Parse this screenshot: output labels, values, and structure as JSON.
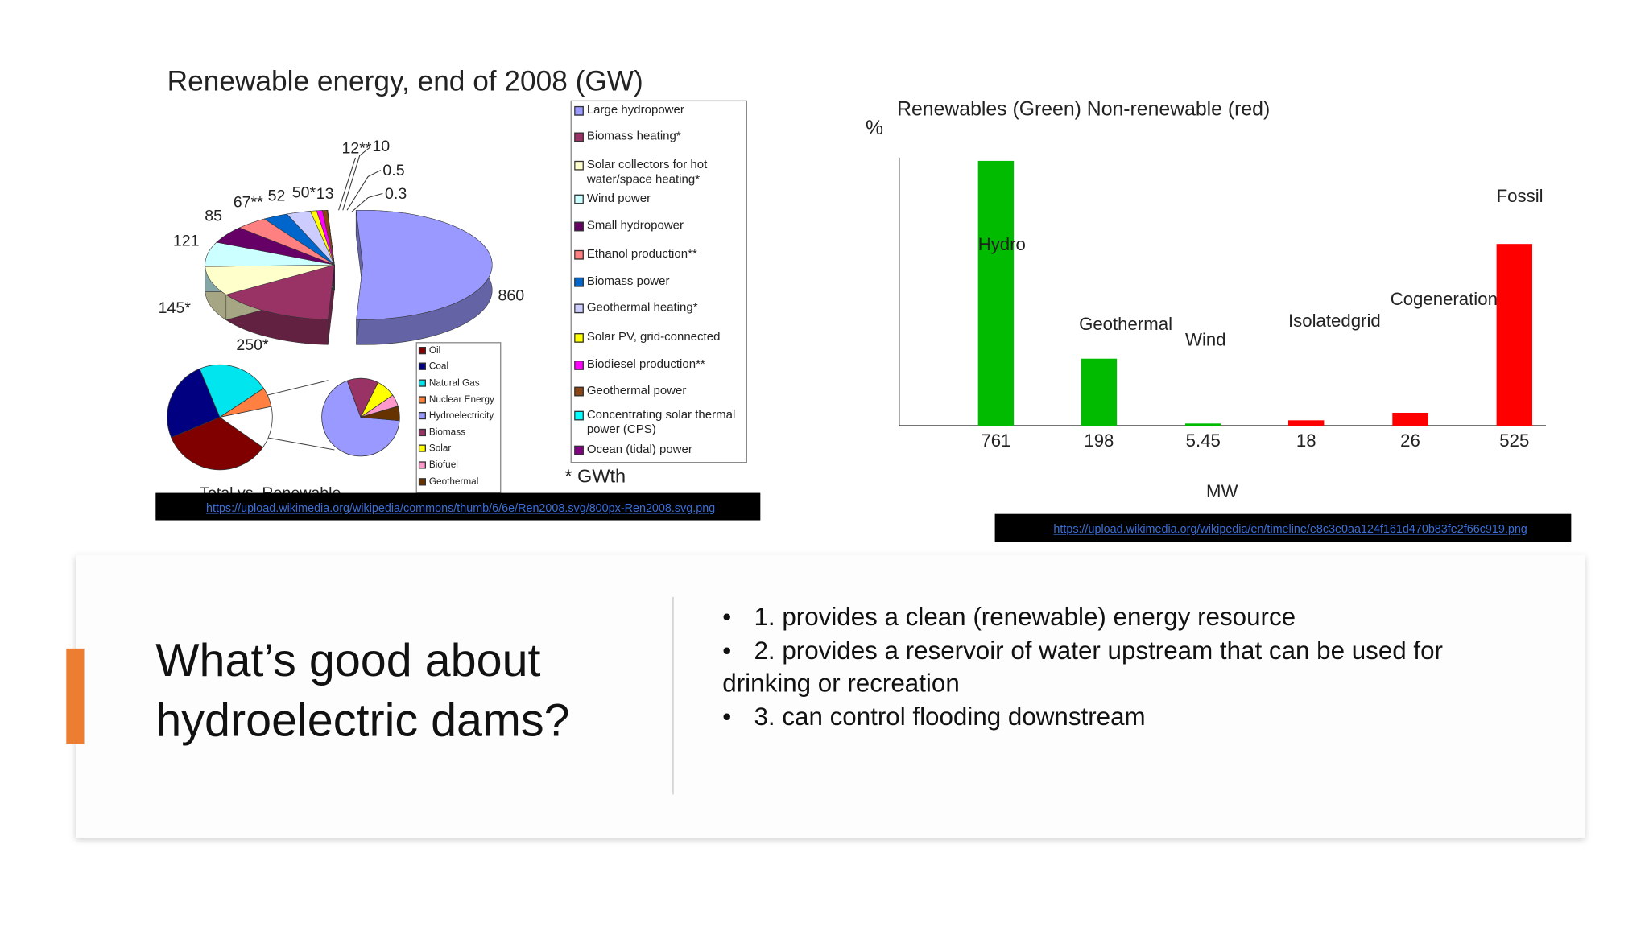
{
  "left_image": {
    "chart": {
      "type": "pie",
      "title": "Renewable energy, end of 2008 (GW)",
      "categories": [
        "Large hydropower",
        "Biomass heating*",
        "Solar collectors for hot water/space heating*",
        "Wind power",
        "Small hydropower",
        "Ethanol production**",
        "Biomass power",
        "Geothermal heating*",
        "Solar PV, grid-connected",
        "Biodiesel production**",
        "Geothermal power",
        "Concentrating solar thermal power (CPS)",
        "Ocean (tidal) power"
      ],
      "values": [
        860,
        250,
        145,
        121,
        85,
        67,
        52,
        50,
        13,
        12,
        10,
        0.5,
        0.3
      ],
      "value_labels": [
        "860",
        "250*",
        "145*",
        "121",
        "85",
        "67**",
        "52",
        "50*",
        "13",
        "12**",
        "10",
        "0.5",
        "0.3"
      ],
      "colors": [
        "#9999ff",
        "#993366",
        "#ffffcc",
        "#ccffff",
        "#660066",
        "#ff8080",
        "#0066cc",
        "#ccccff",
        "#ffff00",
        "#ff00ff",
        "#8b4513",
        "#00ffff",
        "#800080"
      ],
      "note": "* GWth"
    },
    "inset_chart": {
      "type": "pie",
      "title": "Total vs. Renewable",
      "categories": [
        "Oil",
        "Coal",
        "Natural Gas",
        "Nuclear Energy",
        "Hydroelectricity",
        "Biomass",
        "Solar",
        "Biofuel",
        "Geothermal"
      ],
      "colors": [
        "#800000",
        "#000080",
        "#00e5ee",
        "#ff8040",
        "#9999ff",
        "#993366",
        "#ffff00",
        "#ff99cc",
        "#663300"
      ],
      "series": [
        {
          "values": [
            34,
            25,
            22,
            6,
            null,
            null,
            null,
            null,
            null
          ]
        },
        {
          "values": [
            null,
            null,
            null,
            null,
            68,
            13,
            8,
            5,
            6
          ]
        }
      ]
    },
    "source_url": "https://upload.wikimedia.org/wikipedia/commons/thumb/6/6e/Ren2008.svg/800px-Ren2008.svg.png"
  },
  "right_image": {
    "chart": {
      "type": "bar",
      "title": "Renewables (Green) Non-renewable (red)",
      "y_label": "%",
      "x_label": "MW",
      "categories": [
        "761",
        "198",
        "5.45",
        "18",
        "26",
        "525"
      ],
      "bar_labels": [
        "Hydro",
        "Geothermal",
        "Wind",
        "Isolatedgrid",
        "Cogeneration",
        "Fossil"
      ],
      "values": [
        49.4,
        12.5,
        0.4,
        1,
        2.4,
        33.9
      ],
      "colors": [
        "#00bb00",
        "#00bb00",
        "#00bb00",
        "#ff0000",
        "#ff0000",
        "#ff0000"
      ],
      "ylim": [
        0,
        50
      ]
    },
    "source_url": "https://upload.wikimedia.org/wikipedia/en/timeline/e8c3e0aa124f161d470b83fe2f66c919.png"
  },
  "slide": {
    "title": "What’s good about hydroelectric dams?",
    "bullets": [
      "1. provides a clean (renewable) energy resource",
      "2. provides a reservoir of water upstream that can be used for drinking or recreation",
      "3. can control flooding downstream"
    ]
  }
}
